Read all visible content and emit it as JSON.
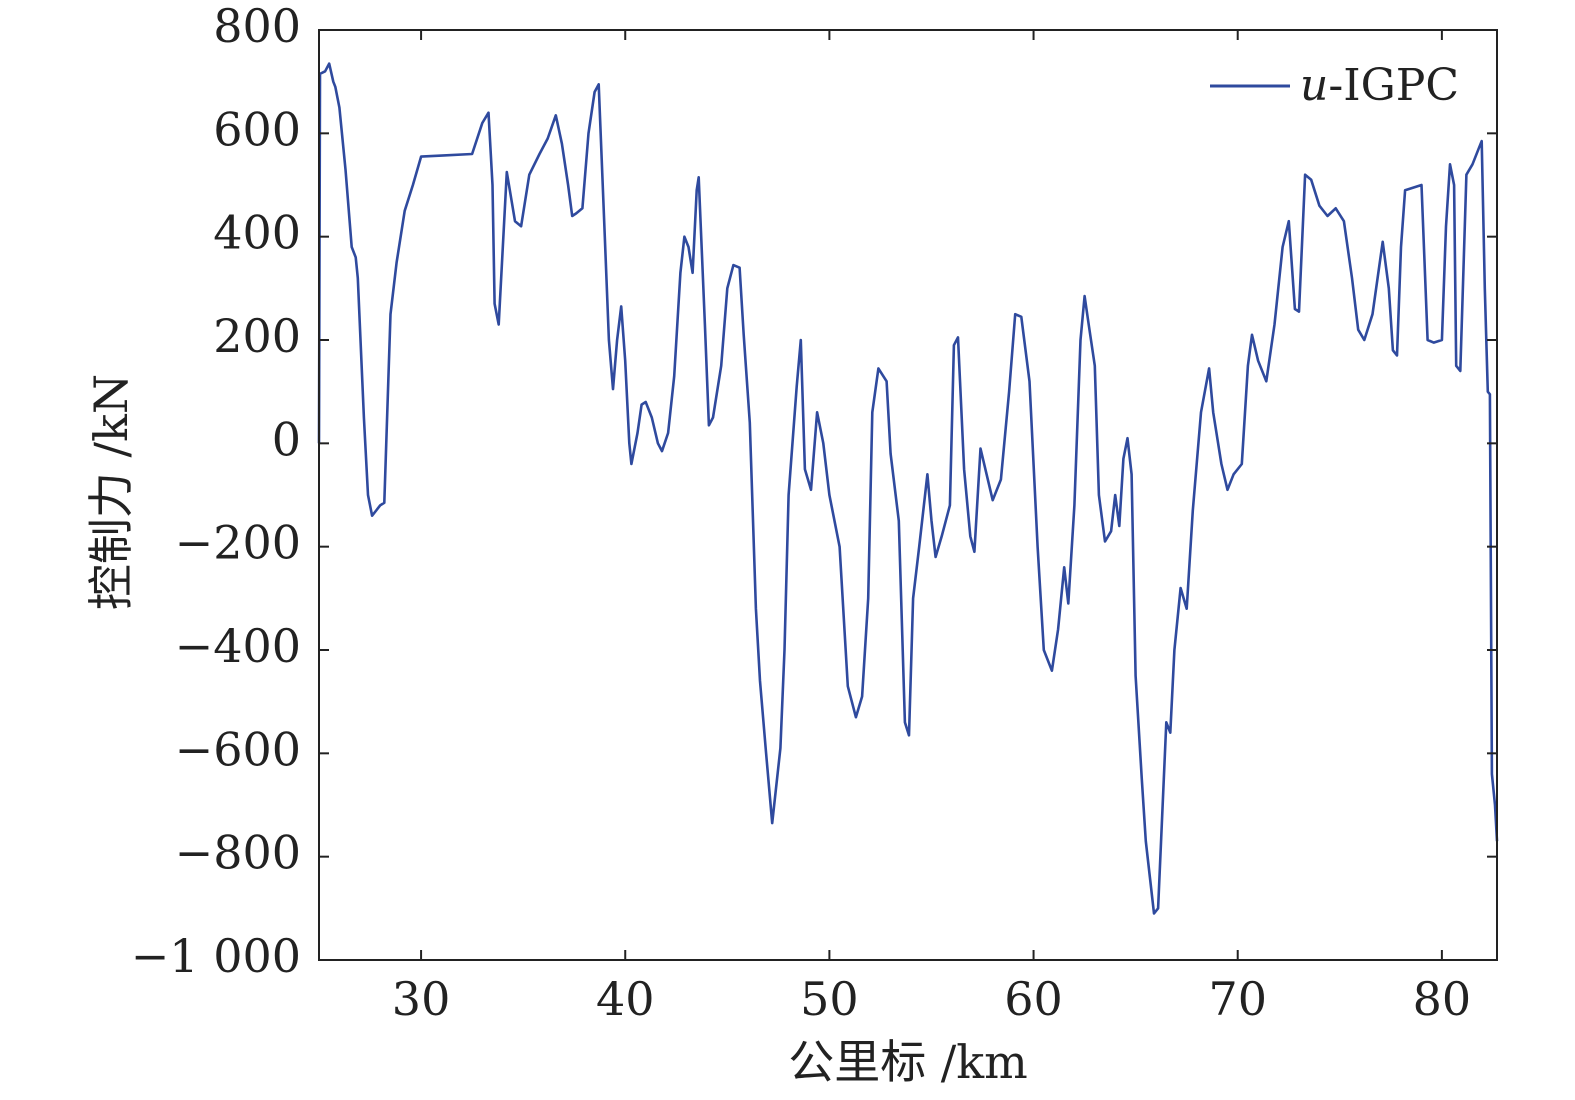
{
  "chart_data": {
    "type": "line",
    "xlabel": "公里标 /km",
    "ylabel": "控制力 /kN",
    "xlim": [
      25,
      82.7
    ],
    "ylim": [
      -1000,
      800
    ],
    "x_ticks": [
      30,
      40,
      50,
      60,
      70,
      80
    ],
    "x_tick_labels": [
      "30",
      "40",
      "50",
      "60",
      "70",
      "80"
    ],
    "y_ticks": [
      -1000,
      -800,
      -600,
      -400,
      -200,
      0,
      200,
      400,
      600,
      800
    ],
    "y_tick_labels": [
      "−1 000",
      "−800",
      "−600",
      "−400",
      "−200",
      "0",
      "200",
      "400",
      "600",
      "800"
    ],
    "grid": false,
    "legend": {
      "placement": "top-right",
      "prefix": "u",
      "suffix": "-IGPC"
    },
    "colors": {
      "line": "#2f4a9e",
      "axis": "#222222"
    },
    "series": [
      {
        "name": "u-IGPC",
        "points": [
          [
            25.0,
            0
          ],
          [
            25.05,
            715
          ],
          [
            25.3,
            720
          ],
          [
            25.5,
            735
          ],
          [
            25.7,
            700
          ],
          [
            25.8,
            690
          ],
          [
            26.0,
            650
          ],
          [
            26.3,
            530
          ],
          [
            26.6,
            380
          ],
          [
            26.8,
            360
          ],
          [
            26.9,
            320
          ],
          [
            27.2,
            50
          ],
          [
            27.4,
            -100
          ],
          [
            27.6,
            -140
          ],
          [
            27.8,
            -130
          ],
          [
            28.0,
            -120
          ],
          [
            28.2,
            -115
          ],
          [
            28.5,
            250
          ],
          [
            28.8,
            350
          ],
          [
            29.2,
            450
          ],
          [
            29.6,
            500
          ],
          [
            30.0,
            555
          ],
          [
            31.0,
            557
          ],
          [
            32.5,
            560
          ],
          [
            33.0,
            620
          ],
          [
            33.3,
            640
          ],
          [
            33.5,
            500
          ],
          [
            33.6,
            270
          ],
          [
            33.8,
            230
          ],
          [
            34.2,
            525
          ],
          [
            34.6,
            430
          ],
          [
            34.9,
            420
          ],
          [
            35.3,
            520
          ],
          [
            35.8,
            560
          ],
          [
            36.2,
            590
          ],
          [
            36.6,
            635
          ],
          [
            36.9,
            580
          ],
          [
            37.2,
            500
          ],
          [
            37.4,
            440
          ],
          [
            37.6,
            445
          ],
          [
            37.9,
            455
          ],
          [
            38.2,
            600
          ],
          [
            38.5,
            680
          ],
          [
            38.7,
            695
          ],
          [
            39.0,
            400
          ],
          [
            39.2,
            200
          ],
          [
            39.4,
            105
          ],
          [
            39.6,
            200
          ],
          [
            39.8,
            265
          ],
          [
            40.0,
            160
          ],
          [
            40.2,
            0
          ],
          [
            40.3,
            -40
          ],
          [
            40.6,
            20
          ],
          [
            40.8,
            75
          ],
          [
            41.0,
            80
          ],
          [
            41.3,
            50
          ],
          [
            41.6,
            0
          ],
          [
            41.8,
            -15
          ],
          [
            42.1,
            20
          ],
          [
            42.4,
            130
          ],
          [
            42.7,
            330
          ],
          [
            42.9,
            400
          ],
          [
            43.1,
            380
          ],
          [
            43.3,
            330
          ],
          [
            43.5,
            490
          ],
          [
            43.6,
            515
          ],
          [
            43.9,
            230
          ],
          [
            44.1,
            35
          ],
          [
            44.3,
            50
          ],
          [
            44.7,
            150
          ],
          [
            45.0,
            300
          ],
          [
            45.3,
            345
          ],
          [
            45.6,
            340
          ],
          [
            45.8,
            210
          ],
          [
            46.1,
            40
          ],
          [
            46.4,
            -320
          ],
          [
            46.6,
            -460
          ],
          [
            46.9,
            -600
          ],
          [
            47.2,
            -735
          ],
          [
            47.6,
            -590
          ],
          [
            47.8,
            -400
          ],
          [
            48.0,
            -100
          ],
          [
            48.4,
            110
          ],
          [
            48.6,
            200
          ],
          [
            48.8,
            -50
          ],
          [
            49.1,
            -90
          ],
          [
            49.4,
            60
          ],
          [
            49.7,
            0
          ],
          [
            50.0,
            -100
          ],
          [
            50.5,
            -200
          ],
          [
            50.9,
            -470
          ],
          [
            51.3,
            -530
          ],
          [
            51.6,
            -490
          ],
          [
            51.9,
            -300
          ],
          [
            52.1,
            60
          ],
          [
            52.4,
            145
          ],
          [
            52.8,
            120
          ],
          [
            53.0,
            -20
          ],
          [
            53.4,
            -150
          ],
          [
            53.7,
            -540
          ],
          [
            53.9,
            -565
          ],
          [
            54.1,
            -300
          ],
          [
            54.4,
            -200
          ],
          [
            54.8,
            -60
          ],
          [
            55.0,
            -150
          ],
          [
            55.2,
            -220
          ],
          [
            55.5,
            -180
          ],
          [
            55.9,
            -120
          ],
          [
            56.1,
            190
          ],
          [
            56.3,
            205
          ],
          [
            56.6,
            -50
          ],
          [
            56.9,
            -180
          ],
          [
            57.1,
            -210
          ],
          [
            57.4,
            -10
          ],
          [
            57.7,
            -60
          ],
          [
            58.0,
            -110
          ],
          [
            58.4,
            -70
          ],
          [
            58.8,
            100
          ],
          [
            59.1,
            250
          ],
          [
            59.4,
            245
          ],
          [
            59.8,
            120
          ],
          [
            60.2,
            -200
          ],
          [
            60.5,
            -400
          ],
          [
            60.9,
            -440
          ],
          [
            61.2,
            -360
          ],
          [
            61.5,
            -240
          ],
          [
            61.7,
            -310
          ],
          [
            62.0,
            -120
          ],
          [
            62.3,
            200
          ],
          [
            62.5,
            285
          ],
          [
            62.7,
            230
          ],
          [
            63.0,
            150
          ],
          [
            63.2,
            -100
          ],
          [
            63.5,
            -190
          ],
          [
            63.8,
            -170
          ],
          [
            64.0,
            -100
          ],
          [
            64.2,
            -160
          ],
          [
            64.4,
            -30
          ],
          [
            64.6,
            10
          ],
          [
            64.8,
            -60
          ],
          [
            65.0,
            -450
          ],
          [
            65.3,
            -650
          ],
          [
            65.5,
            -770
          ],
          [
            65.7,
            -840
          ],
          [
            65.9,
            -910
          ],
          [
            66.1,
            -900
          ],
          [
            66.3,
            -720
          ],
          [
            66.5,
            -540
          ],
          [
            66.7,
            -560
          ],
          [
            66.9,
            -400
          ],
          [
            67.2,
            -280
          ],
          [
            67.5,
            -320
          ],
          [
            67.8,
            -130
          ],
          [
            68.2,
            60
          ],
          [
            68.6,
            145
          ],
          [
            68.8,
            60
          ],
          [
            69.2,
            -40
          ],
          [
            69.5,
            -90
          ],
          [
            69.8,
            -60
          ],
          [
            70.2,
            -40
          ],
          [
            70.5,
            150
          ],
          [
            70.7,
            210
          ],
          [
            71.0,
            160
          ],
          [
            71.4,
            120
          ],
          [
            71.8,
            230
          ],
          [
            72.2,
            380
          ],
          [
            72.5,
            430
          ],
          [
            72.8,
            260
          ],
          [
            73.0,
            255
          ],
          [
            73.3,
            520
          ],
          [
            73.6,
            510
          ],
          [
            74.0,
            460
          ],
          [
            74.4,
            440
          ],
          [
            74.8,
            455
          ],
          [
            75.2,
            430
          ],
          [
            75.6,
            320
          ],
          [
            75.9,
            220
          ],
          [
            76.2,
            200
          ],
          [
            76.6,
            250
          ],
          [
            77.1,
            390
          ],
          [
            77.4,
            300
          ],
          [
            77.6,
            180
          ],
          [
            77.8,
            170
          ],
          [
            78.0,
            380
          ],
          [
            78.2,
            490
          ],
          [
            78.6,
            495
          ],
          [
            79.0,
            500
          ],
          [
            79.3,
            200
          ],
          [
            79.6,
            195
          ],
          [
            80.0,
            200
          ],
          [
            80.2,
            420
          ],
          [
            80.4,
            540
          ],
          [
            80.6,
            500
          ],
          [
            80.7,
            150
          ],
          [
            80.9,
            140
          ],
          [
            81.2,
            520
          ],
          [
            81.5,
            540
          ],
          [
            81.8,
            570
          ],
          [
            81.95,
            585
          ],
          [
            82.1,
            300
          ],
          [
            82.25,
            100
          ],
          [
            82.35,
            95
          ],
          [
            82.45,
            -640
          ],
          [
            82.6,
            -700
          ],
          [
            82.7,
            -770
          ]
        ]
      }
    ]
  }
}
